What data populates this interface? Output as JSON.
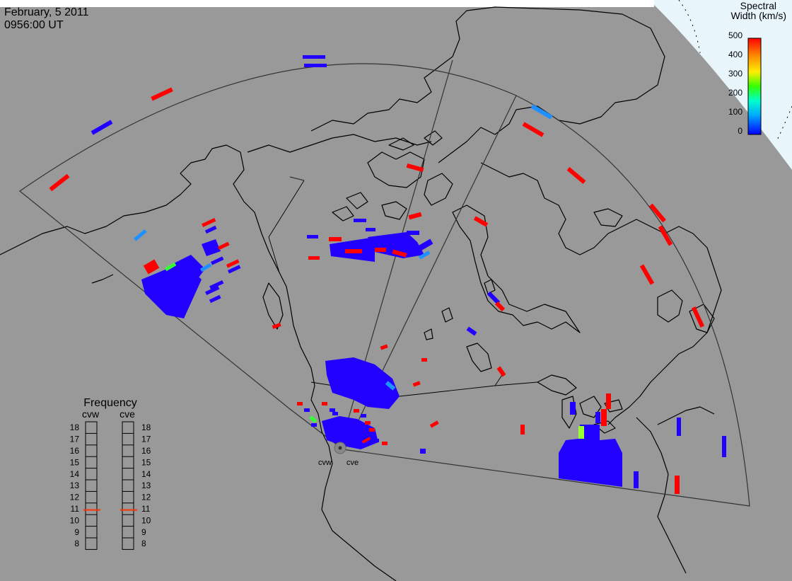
{
  "header": {
    "date": "February, 5 2011",
    "time": "0956:00 UT"
  },
  "colorbar": {
    "title_line1": "Spectral",
    "title_line2": "Width (km/s)",
    "ticks": [
      "500",
      "400",
      "300",
      "200",
      "100",
      "0"
    ]
  },
  "frequency_panel": {
    "title": "Frequency",
    "radar_left": "cvw",
    "radar_right": "cve",
    "scale": [
      "18",
      "17",
      "16",
      "15",
      "14",
      "13",
      "12",
      "11",
      "10",
      "9",
      "8"
    ],
    "left_freq_mhz": 10.9,
    "right_freq_mhz": 10.9,
    "marker_color": "#ff3300"
  },
  "radar_labels": {
    "west": "cvw",
    "east": "cve"
  },
  "colors": {
    "ocean": "#999999",
    "high_lat_background": "#e8f6fc",
    "low": "#2200ff",
    "mid_low": "#1e90ff",
    "green": "#33ff33",
    "yellow_green": "#99ff33",
    "high": "#ff0000"
  }
}
